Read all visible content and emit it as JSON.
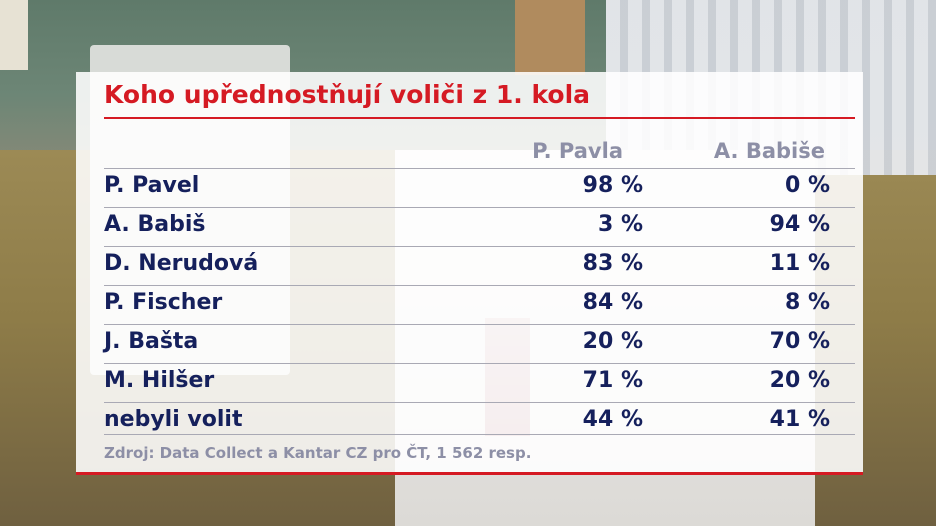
{
  "chart_data": {
    "type": "table",
    "title": "Koho upřednostňují voliči z 1. kola",
    "columns": [
      "P. Pavla",
      "A. Babiše"
    ],
    "rows": [
      {
        "name": "P. Pavel",
        "values": [
          "98 %",
          "0 %"
        ]
      },
      {
        "name": "A. Babiš",
        "values": [
          "3 %",
          "94 %"
        ]
      },
      {
        "name": "D. Nerudová",
        "values": [
          "83 %",
          "11 %"
        ]
      },
      {
        "name": "P. Fischer",
        "values": [
          "84 %",
          "8 %"
        ]
      },
      {
        "name": "J. Bašta",
        "values": [
          "20 %",
          "70 %"
        ]
      },
      {
        "name": "M. Hilšer",
        "values": [
          "71 %",
          "20 %"
        ]
      },
      {
        "name": "nebyli volit",
        "values": [
          "44 %",
          "41 %"
        ]
      }
    ],
    "source": "Zdroj: Data Collect a Kantar CZ pro ČT, 1 562 resp."
  },
  "colors": {
    "accent": "#d51a23",
    "text": "#15205c",
    "muted": "#8d8fa6"
  }
}
